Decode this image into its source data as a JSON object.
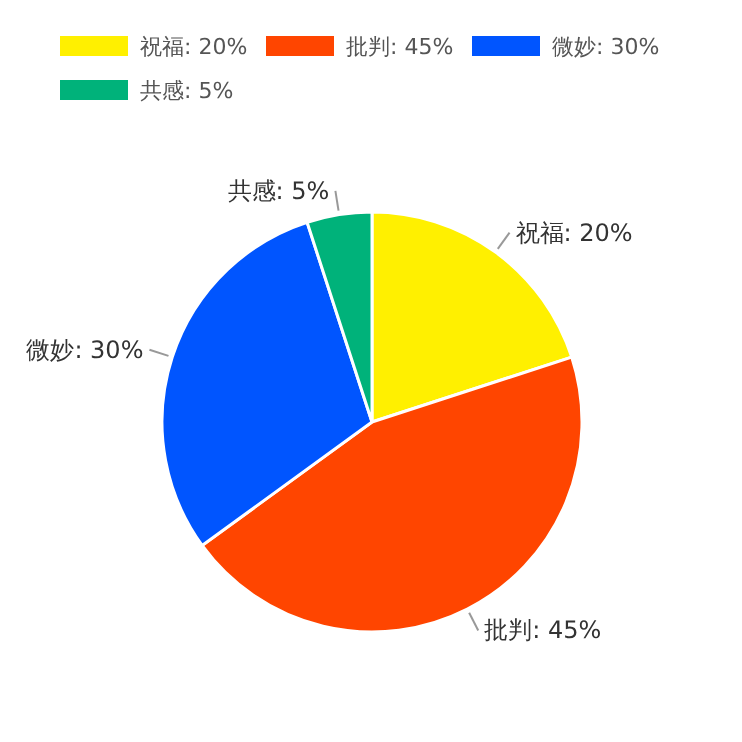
{
  "chart_data": {
    "type": "pie",
    "categories": [
      "祝福",
      "批判",
      "微妙",
      "共感"
    ],
    "values": [
      20,
      45,
      30,
      5
    ],
    "value_labels": [
      "20%",
      "45%",
      "30%",
      "5%"
    ],
    "colors": [
      "#fff000",
      "#ff4500",
      "#0055ff",
      "#00b27a"
    ],
    "legend": "top"
  }
}
